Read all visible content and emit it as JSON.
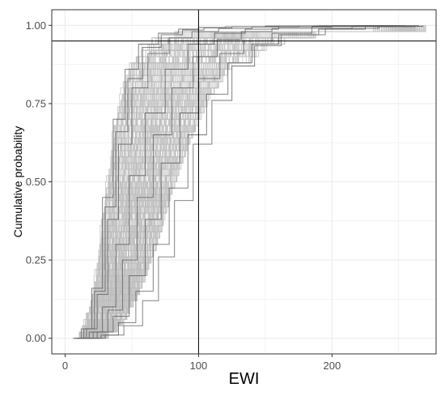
{
  "chart_data": {
    "type": "line",
    "title": "",
    "xlabel": "EWI",
    "ylabel": "Cumulative probability",
    "xlim": [
      -10,
      278
    ],
    "ylim": [
      -0.05,
      1.05
    ],
    "x_ticks": [
      0,
      100,
      200
    ],
    "x_tick_labels": [
      "0",
      "100",
      "200"
    ],
    "y_ticks": [
      0.0,
      0.25,
      0.5,
      0.75,
      1.0
    ],
    "y_tick_labels": [
      "0.00",
      "0.25",
      "0.50",
      "0.75",
      "1.00"
    ],
    "reference_lines": {
      "vertical_x": 100,
      "horizontal_y": 0.95
    },
    "grid": true,
    "legend": "none",
    "colors": {
      "curve_fill": "#bebebe",
      "outer_curve": "#5a5a5a",
      "reference_line": "#000000",
      "grid": "#ebebeb",
      "panel_border": "#333333"
    },
    "series": [
      {
        "x": [
          6,
          12,
          20,
          28,
          36,
          45,
          55,
          70,
          85,
          100,
          120,
          150,
          190,
          230
        ],
        "y": [
          0,
          0.03,
          0.16,
          0.45,
          0.7,
          0.86,
          0.94,
          0.975,
          0.988,
          0.993,
          0.996,
          0.998,
          0.999,
          1.0
        ]
      },
      {
        "x": [
          8,
          16,
          24,
          32,
          40,
          50,
          62,
          78,
          95,
          115,
          140,
          175,
          220,
          250
        ],
        "y": [
          0,
          0.03,
          0.14,
          0.38,
          0.62,
          0.8,
          0.91,
          0.96,
          0.98,
          0.99,
          0.995,
          0.998,
          0.999,
          1.0
        ]
      },
      {
        "x": [
          10,
          18,
          28,
          38,
          48,
          60,
          75,
          92,
          112,
          135,
          160,
          200,
          240,
          265
        ],
        "y": [
          0,
          0.02,
          0.1,
          0.3,
          0.52,
          0.72,
          0.86,
          0.94,
          0.975,
          0.988,
          0.994,
          0.998,
          0.999,
          1.0
        ]
      },
      {
        "x": [
          14,
          24,
          36,
          48,
          60,
          72,
          86,
          100,
          116,
          134,
          155,
          185,
          215,
          245
        ],
        "y": [
          0,
          0.02,
          0.07,
          0.2,
          0.38,
          0.56,
          0.72,
          0.83,
          0.91,
          0.95,
          0.975,
          0.99,
          0.996,
          1.0
        ]
      },
      {
        "x": [
          17,
          27,
          40,
          53,
          66,
          78,
          92,
          106,
          122,
          140,
          160,
          190,
          225,
          262
        ],
        "y": [
          0,
          0.01,
          0.05,
          0.15,
          0.3,
          0.48,
          0.65,
          0.78,
          0.88,
          0.94,
          0.97,
          0.988,
          0.996,
          1.0
        ]
      },
      {
        "x": [
          7,
          14,
          22,
          30,
          38,
          47,
          58,
          72,
          88,
          104,
          125,
          160,
          200,
          240
        ],
        "y": [
          0,
          0.03,
          0.15,
          0.42,
          0.66,
          0.83,
          0.93,
          0.97,
          0.985,
          0.992,
          0.996,
          0.998,
          0.999,
          1.0
        ]
      },
      {
        "x": [
          12,
          21,
          32,
          43,
          54,
          66,
          80,
          96,
          114,
          132,
          155,
          185,
          225,
          255
        ],
        "y": [
          0,
          0.02,
          0.09,
          0.25,
          0.45,
          0.65,
          0.8,
          0.9,
          0.955,
          0.98,
          0.99,
          0.996,
          0.999,
          1.0
        ]
      },
      {
        "x": [
          18,
          30,
          44,
          58,
          70,
          82,
          96,
          110,
          125,
          142,
          162,
          195,
          235,
          268
        ],
        "y": [
          0,
          0.01,
          0.04,
          0.12,
          0.26,
          0.44,
          0.62,
          0.76,
          0.87,
          0.935,
          0.97,
          0.99,
          0.997,
          1.0
        ]
      }
    ]
  }
}
